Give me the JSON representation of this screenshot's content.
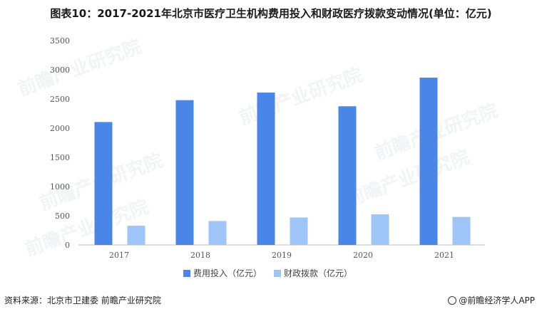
{
  "title": "图表10：2017-2021年北京市医疗卫生机构费用投入和财政医疗拨款变动情况(单位：亿元)",
  "source": "资料来源：北京市卫建委 前瞻产业研究院",
  "brand": "@前瞻经济学人APP",
  "watermark": "前瞻产业研究院",
  "colors": {
    "series1": "#4a86e8",
    "series2": "#9fc5f8"
  },
  "chart_data": {
    "type": "bar",
    "categories": [
      "2017",
      "2018",
      "2019",
      "2020",
      "2021"
    ],
    "series": [
      {
        "name": "费用投入（亿元）",
        "values": [
          2105,
          2480,
          2610,
          2375,
          2865
        ]
      },
      {
        "name": "财政拨款（亿元）",
        "values": [
          330,
          410,
          470,
          525,
          480
        ]
      }
    ],
    "ylim": [
      0,
      3500
    ],
    "yticks": [
      "0",
      "500",
      "1000",
      "1500",
      "2000",
      "2500",
      "3000",
      "3500"
    ],
    "legend_position": "bottom-center"
  }
}
